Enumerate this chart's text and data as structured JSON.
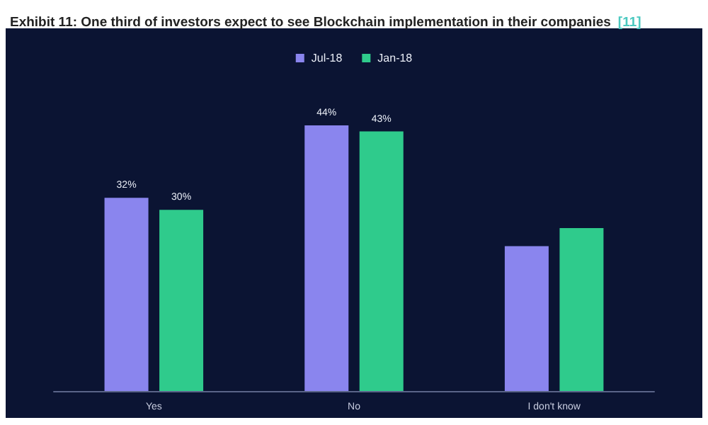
{
  "chart_data": {
    "type": "bar",
    "title": "Exhibit 11: One third of investors expect to see Blockchain implementation in their companies",
    "annotations": [
      "[11]"
    ],
    "categories": [
      "Yes",
      "No",
      "I don't know"
    ],
    "series": [
      {
        "name": "Jul-18",
        "color": "#8a85ee",
        "values": [
          32,
          44,
          24
        ],
        "value_labels": [
          "32%",
          "44%",
          null
        ]
      },
      {
        "name": "Jan-18",
        "color": "#2fcb8c",
        "values": [
          30,
          43,
          27
        ],
        "value_labels": [
          "30%",
          "43%",
          null
        ]
      }
    ],
    "legend": "top"
  }
}
